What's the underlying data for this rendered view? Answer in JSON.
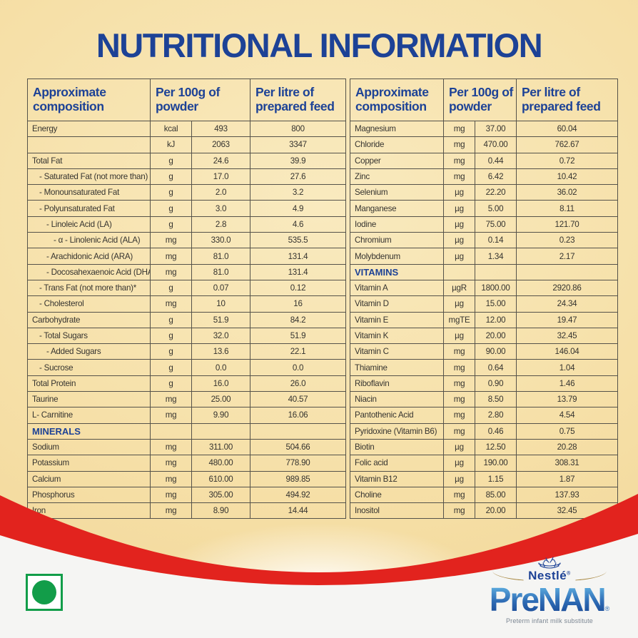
{
  "title": "NUTRITIONAL INFORMATION",
  "colors": {
    "background_gold": "#f4dca2",
    "navy_blue": "#1d4296",
    "red_band": "#e2231e",
    "body_text": "#363430",
    "veg_mark_green": "#129d49",
    "prenan_blue_top": "#6ec4ee",
    "prenan_blue_bottom": "#143f8c",
    "bottom_background": "#f5f5f3"
  },
  "column_headers": [
    "Approximate composition",
    "Per 100g of powder",
    "Per litre of prepared feed"
  ],
  "tables": {
    "left": {
      "rows": [
        {
          "label": "Energy",
          "unit": "kcal",
          "per_100g": "493",
          "per_litre": "800",
          "indent": 0
        },
        {
          "label": "",
          "unit": "kJ",
          "per_100g": "2063",
          "per_litre": "3347",
          "indent": 0
        },
        {
          "label": "Total Fat",
          "unit": "g",
          "per_100g": "24.6",
          "per_litre": "39.9",
          "indent": 0
        },
        {
          "label": "- Saturated Fat (not more than)",
          "unit": "g",
          "per_100g": "17.0",
          "per_litre": "27.6",
          "indent": 1
        },
        {
          "label": "- Monounsaturated Fat",
          "unit": "g",
          "per_100g": "2.0",
          "per_litre": "3.2",
          "indent": 1
        },
        {
          "label": "- Polyunsaturated Fat",
          "unit": "g",
          "per_100g": "3.0",
          "per_litre": "4.9",
          "indent": 1
        },
        {
          "label": "- Linoleic Acid (LA)",
          "unit": "g",
          "per_100g": "2.8",
          "per_litre": "4.6",
          "indent": 2
        },
        {
          "label": "- α - Linolenic Acid (ALA)",
          "unit": "mg",
          "per_100g": "330.0",
          "per_litre": "535.5",
          "indent": 3
        },
        {
          "label": "- Arachidonic Acid (ARA)",
          "unit": "mg",
          "per_100g": "81.0",
          "per_litre": "131.4",
          "indent": 2
        },
        {
          "label": "- Docosahexaenoic Acid (DHA)",
          "unit": "mg",
          "per_100g": "81.0",
          "per_litre": "131.4",
          "indent": 2
        },
        {
          "label": "- Trans Fat (not more than)*",
          "unit": "g",
          "per_100g": "0.07",
          "per_litre": "0.12",
          "indent": 1
        },
        {
          "label": "- Cholesterol",
          "unit": "mg",
          "per_100g": "10",
          "per_litre": "16",
          "indent": 1
        },
        {
          "label": "Carbohydrate",
          "unit": "g",
          "per_100g": "51.9",
          "per_litre": "84.2",
          "indent": 0
        },
        {
          "label": "- Total Sugars",
          "unit": "g",
          "per_100g": "32.0",
          "per_litre": "51.9",
          "indent": 1
        },
        {
          "label": "- Added Sugars",
          "unit": "g",
          "per_100g": "13.6",
          "per_litre": "22.1",
          "indent": 2
        },
        {
          "label": "- Sucrose",
          "unit": "g",
          "per_100g": "0.0",
          "per_litre": "0.0",
          "indent": 1
        },
        {
          "label": "Total Protein",
          "unit": "g",
          "per_100g": "16.0",
          "per_litre": "26.0",
          "indent": 0
        },
        {
          "label": "Taurine",
          "unit": "mg",
          "per_100g": "25.00",
          "per_litre": "40.57",
          "indent": 0
        },
        {
          "label": "L- Carnitine",
          "unit": "mg",
          "per_100g": "9.90",
          "per_litre": "16.06",
          "indent": 0
        },
        {
          "label": "MINERALS",
          "unit": "",
          "per_100g": "",
          "per_litre": "",
          "indent": 0,
          "section": true
        },
        {
          "label": "Sodium",
          "unit": "mg",
          "per_100g": "311.00",
          "per_litre": "504.66",
          "indent": 0
        },
        {
          "label": "Potassium",
          "unit": "mg",
          "per_100g": "480.00",
          "per_litre": "778.90",
          "indent": 0
        },
        {
          "label": "Calcium",
          "unit": "mg",
          "per_100g": "610.00",
          "per_litre": "989.85",
          "indent": 0
        },
        {
          "label": "Phosphorus",
          "unit": "mg",
          "per_100g": "305.00",
          "per_litre": "494.92",
          "indent": 0
        },
        {
          "label": "Iron",
          "unit": "mg",
          "per_100g": "8.90",
          "per_litre": "14.44",
          "indent": 0
        }
      ]
    },
    "right": {
      "rows": [
        {
          "label": "Magnesium",
          "unit": "mg",
          "per_100g": "37.00",
          "per_litre": "60.04",
          "indent": 0
        },
        {
          "label": "Chloride",
          "unit": "mg",
          "per_100g": "470.00",
          "per_litre": "762.67",
          "indent": 0
        },
        {
          "label": "Copper",
          "unit": "mg",
          "per_100g": "0.44",
          "per_litre": "0.72",
          "indent": 0
        },
        {
          "label": "Zinc",
          "unit": "mg",
          "per_100g": "6.42",
          "per_litre": "10.42",
          "indent": 0
        },
        {
          "label": "Selenium",
          "unit": "µg",
          "per_100g": "22.20",
          "per_litre": "36.02",
          "indent": 0
        },
        {
          "label": "Manganese",
          "unit": "µg",
          "per_100g": "5.00",
          "per_litre": "8.11",
          "indent": 0
        },
        {
          "label": "Iodine",
          "unit": "µg",
          "per_100g": "75.00",
          "per_litre": "121.70",
          "indent": 0
        },
        {
          "label": "Chromium",
          "unit": "µg",
          "per_100g": "0.14",
          "per_litre": "0.23",
          "indent": 0
        },
        {
          "label": "Molybdenum",
          "unit": "µg",
          "per_100g": "1.34",
          "per_litre": "2.17",
          "indent": 0
        },
        {
          "label": "VITAMINS",
          "unit": "",
          "per_100g": "",
          "per_litre": "",
          "indent": 0,
          "section": true
        },
        {
          "label": "Vitamin A",
          "unit": "µgR",
          "per_100g": "1800.00",
          "per_litre": "2920.86",
          "indent": 0
        },
        {
          "label": "Vitamin D",
          "unit": "µg",
          "per_100g": "15.00",
          "per_litre": "24.34",
          "indent": 0
        },
        {
          "label": "Vitamin E",
          "unit": "mgTE",
          "per_100g": "12.00",
          "per_litre": "19.47",
          "indent": 0
        },
        {
          "label": "Vitamin K",
          "unit": "µg",
          "per_100g": "20.00",
          "per_litre": "32.45",
          "indent": 0
        },
        {
          "label": "Vitamin C",
          "unit": "mg",
          "per_100g": "90.00",
          "per_litre": "146.04",
          "indent": 0
        },
        {
          "label": "Thiamine",
          "unit": "mg",
          "per_100g": "0.64",
          "per_litre": "1.04",
          "indent": 0
        },
        {
          "label": "Riboflavin",
          "unit": "mg",
          "per_100g": "0.90",
          "per_litre": "1.46",
          "indent": 0
        },
        {
          "label": "Niacin",
          "unit": "mg",
          "per_100g": "8.50",
          "per_litre": "13.79",
          "indent": 0
        },
        {
          "label": "Pantothenic Acid",
          "unit": "mg",
          "per_100g": "2.80",
          "per_litre": "4.54",
          "indent": 0
        },
        {
          "label": "Pyridoxine (Vitamin B6)",
          "unit": "mg",
          "per_100g": "0.46",
          "per_litre": "0.75",
          "indent": 0
        },
        {
          "label": "Biotin",
          "unit": "µg",
          "per_100g": "12.50",
          "per_litre": "20.28",
          "indent": 0
        },
        {
          "label": "Folic acid",
          "unit": "µg",
          "per_100g": "190.00",
          "per_litre": "308.31",
          "indent": 0
        },
        {
          "label": "Vitamin B12",
          "unit": "µg",
          "per_100g": "1.15",
          "per_litre": "1.87",
          "indent": 0
        },
        {
          "label": "Choline",
          "unit": "mg",
          "per_100g": "85.00",
          "per_litre": "137.93",
          "indent": 0
        },
        {
          "label": "Inositol",
          "unit": "mg",
          "per_100g": "20.00",
          "per_litre": "32.45",
          "indent": 0
        }
      ]
    }
  },
  "footer": {
    "brand": "Nestlé",
    "brand_reg": "®",
    "product": "PreNAN",
    "product_reg": "®",
    "tagline": "Preterm infant milk substitute"
  }
}
